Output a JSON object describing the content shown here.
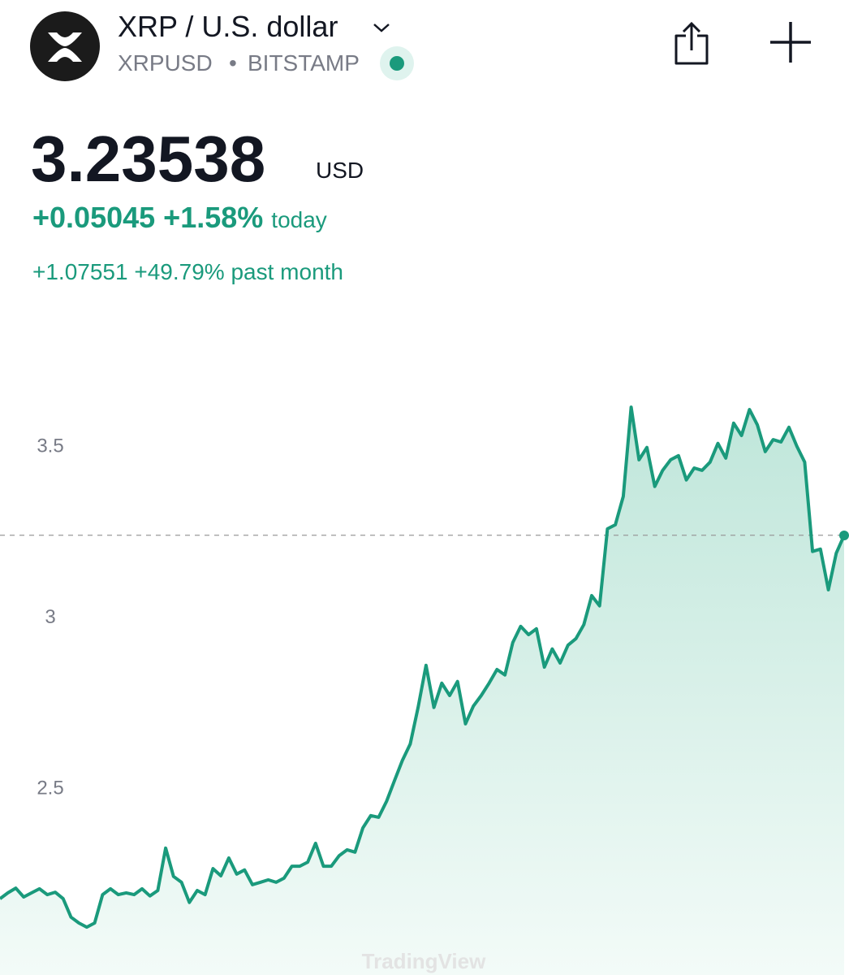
{
  "header": {
    "title": "XRP / U.S. dollar",
    "symbol": "XRPUSD",
    "exchange": "BITSTAMP"
  },
  "price": {
    "value": 3.23538,
    "currency": "USD"
  },
  "change_today": {
    "abs": "+0.05045",
    "pct": "+1.58%",
    "label": "today"
  },
  "change_month": {
    "abs": "+1.07551",
    "pct": "+49.79%",
    "label": "past month"
  },
  "chart_data": {
    "type": "line",
    "watermark": "TradingView",
    "series": [
      {
        "name": "XRPUSD",
        "color": "#1a9a7c",
        "values": [
          2.173,
          2.19,
          2.204,
          2.178,
          2.19,
          2.202,
          2.185,
          2.192,
          2.173,
          2.119,
          2.102,
          2.09,
          2.102,
          2.185,
          2.202,
          2.185,
          2.19,
          2.185,
          2.202,
          2.181,
          2.197,
          2.321,
          2.238,
          2.221,
          2.162,
          2.197,
          2.185,
          2.261,
          2.24,
          2.292,
          2.245,
          2.257,
          2.214,
          2.221,
          2.228,
          2.221,
          2.233,
          2.268,
          2.268,
          2.28,
          2.335,
          2.268,
          2.268,
          2.299,
          2.316,
          2.309,
          2.38,
          2.416,
          2.411,
          2.458,
          2.518,
          2.577,
          2.625,
          2.732,
          2.855,
          2.732,
          2.803,
          2.767,
          2.808,
          2.684,
          2.736,
          2.767,
          2.803,
          2.843,
          2.827,
          2.922,
          2.969,
          2.945,
          2.962,
          2.85,
          2.903,
          2.862,
          2.914,
          2.933,
          2.974,
          3.059,
          3.029,
          3.254,
          3.266,
          3.349,
          3.61,
          3.456,
          3.492,
          3.378,
          3.425,
          3.456,
          3.468,
          3.397,
          3.432,
          3.425,
          3.449,
          3.504,
          3.461,
          3.563,
          3.527,
          3.603,
          3.558,
          3.48,
          3.515,
          3.508,
          3.551,
          3.496,
          3.449,
          3.188,
          3.195,
          3.076,
          3.183,
          3.235
        ]
      }
    ],
    "ylim": [
      1.95,
      3.85
    ],
    "yticks": [
      2.5,
      3,
      3.5
    ]
  }
}
